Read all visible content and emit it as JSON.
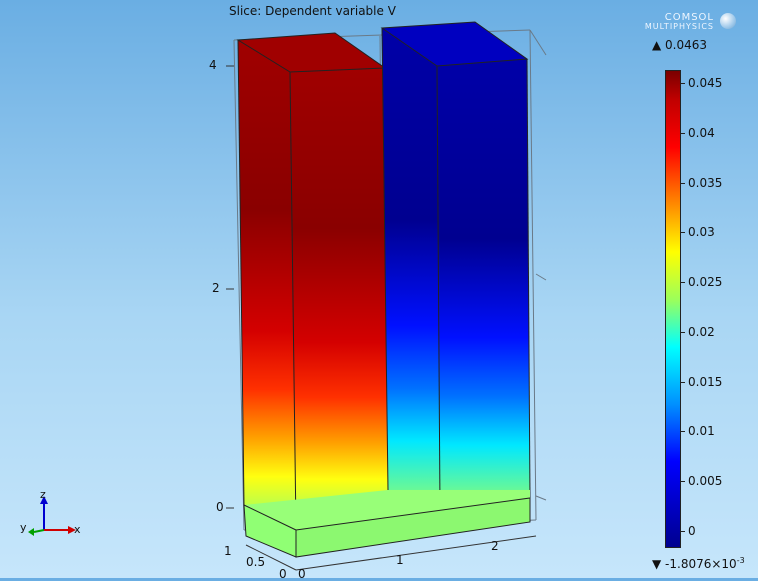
{
  "plot": {
    "title": "Slice: Dependent variable V",
    "logo_line1": "COMSOL",
    "logo_line2": "MULTIPHYSICS",
    "max_label": "▲ 0.0463",
    "min_label": "▼ -1.8076×10",
    "min_exp": "-3"
  },
  "colorbar": {
    "ticks": [
      "0.045",
      "0.04",
      "0.035",
      "0.03",
      "0.025",
      "0.02",
      "0.015",
      "0.01",
      "0.005",
      "0"
    ]
  },
  "axes": {
    "z_ticks": [
      "4",
      "2",
      "0"
    ],
    "x_ticks": [
      "1",
      "2"
    ],
    "y_ticks": [
      "1",
      "0.5",
      "0"
    ],
    "x_zero": "0"
  },
  "triad": {
    "z": "z",
    "y": "y",
    "x": "x"
  },
  "colors": {
    "hot": "#c00000",
    "cold": "#0000c8",
    "mid": "#90ff70"
  }
}
